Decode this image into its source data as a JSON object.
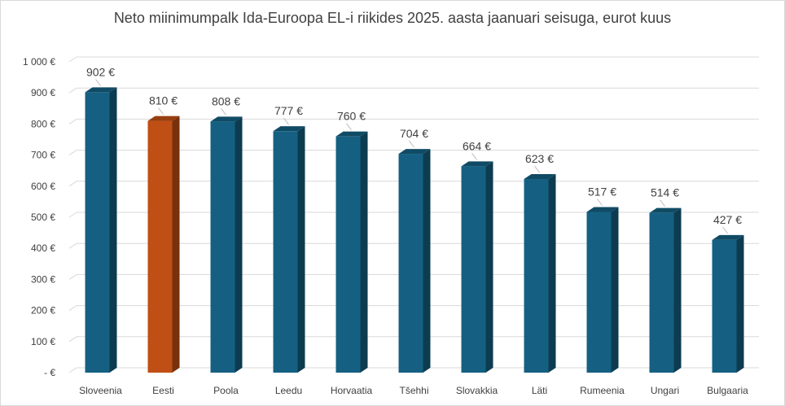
{
  "chart_data": {
    "type": "bar",
    "title": "Neto miinimumpalk Ida-Euroopa EL-i riikides 2025. aasta jaanuari seisuga, eurot kuus",
    "categories": [
      "Sloveenia",
      "Eesti",
      "Poola",
      "Leedu",
      "Horvaatia",
      "Tšehhi",
      "Slovakkia",
      "Läti",
      "Rumeenia",
      "Ungari",
      "Bulgaaria"
    ],
    "values": [
      902,
      810,
      808,
      777,
      760,
      704,
      664,
      623,
      517,
      514,
      427
    ],
    "data_labels": [
      "902 €",
      "810 €",
      "808 €",
      "777 €",
      "760 €",
      "704 €",
      "664 €",
      "623 €",
      "517 €",
      "514 €",
      "427 €"
    ],
    "y_tick_labels": [
      "- €",
      "100 €",
      "200 €",
      "300 €",
      "400 €",
      "500 €",
      "600 €",
      "700 €",
      "800 €",
      "900 €",
      "1 000 €"
    ],
    "ylim": [
      0,
      1000
    ],
    "grid": true,
    "legend": "none",
    "colors": {
      "bar": "#156082",
      "bar_highlight": "#C04F15",
      "gridline": "#d9d9d9",
      "text": "#404040"
    },
    "highlight_index": 1
  }
}
